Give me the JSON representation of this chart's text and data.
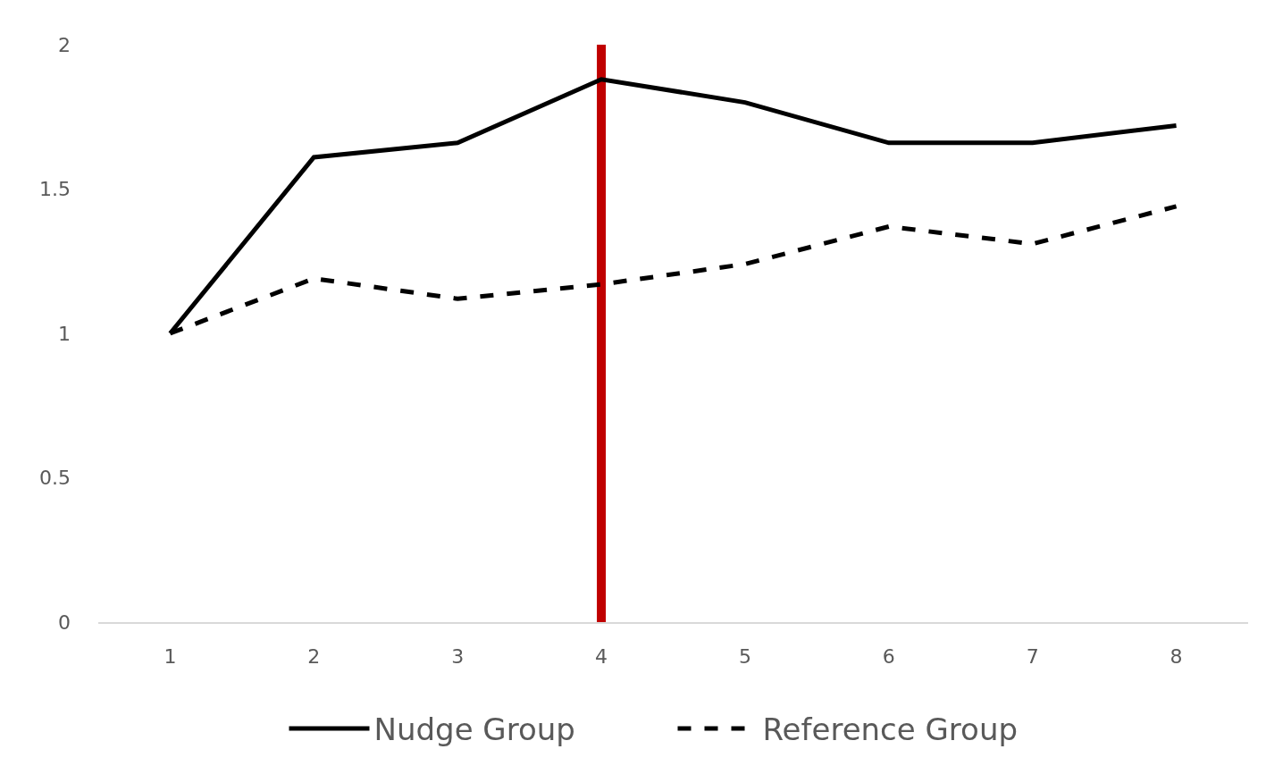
{
  "chart_data": {
    "type": "line",
    "categories": [
      "1",
      "2",
      "3",
      "4",
      "5",
      "6",
      "7",
      "8"
    ],
    "series": [
      {
        "name": "Nudge Group",
        "color": "#000000",
        "line_style": "solid",
        "values": [
          1.0,
          1.61,
          1.66,
          1.88,
          1.8,
          1.66,
          1.66,
          1.72
        ]
      },
      {
        "name": "Reference Group",
        "color": "#000000",
        "line_style": "dashed",
        "values": [
          1.0,
          1.19,
          1.12,
          1.17,
          1.24,
          1.37,
          1.31,
          1.44
        ]
      }
    ],
    "ylim": [
      0,
      2
    ],
    "yticks": [
      0,
      0.5,
      1,
      1.5,
      2
    ],
    "grid": false,
    "legend": "bottom",
    "marker": "none",
    "ref_lines": [
      {
        "axis": "x",
        "value": "4",
        "color": "#c00000",
        "line_style": "solid"
      }
    ]
  }
}
